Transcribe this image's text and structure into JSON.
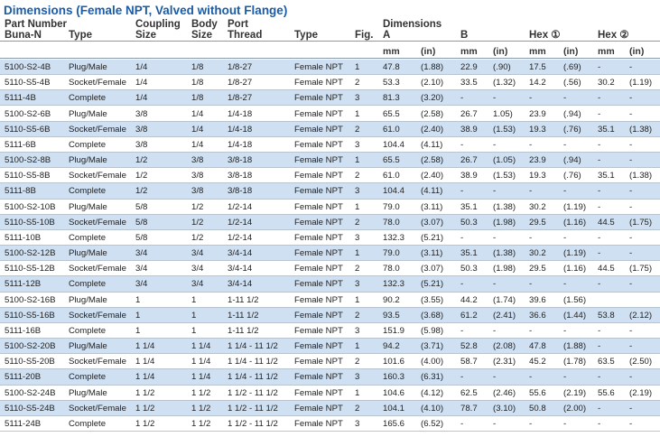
{
  "header": {
    "title": "Dimensions (Female NPT, Valved without Flange)"
  },
  "table": {
    "headers": [
      {
        "lines": [
          "Part Number",
          "Buna-N"
        ]
      },
      {
        "lines": [
          "Type"
        ]
      },
      {
        "lines": [
          "Coupling",
          "Size"
        ]
      },
      {
        "lines": [
          "Body",
          "Size"
        ]
      },
      {
        "lines": [
          "Port",
          "Thread"
        ]
      },
      {
        "lines": [
          "Type"
        ]
      },
      {
        "lines": [
          "Fig."
        ]
      },
      {
        "lines": [
          "Dimensions",
          "A"
        ]
      },
      {
        "lines": [
          "B"
        ]
      },
      {
        "lines": [
          "Hex ①"
        ]
      },
      {
        "lines": [
          "Hex ②"
        ]
      }
    ],
    "units": [
      "mm",
      "(in)",
      "mm",
      "(in)",
      "mm",
      "(in)",
      "mm",
      "(in)"
    ],
    "rows": [
      [
        "5100-S2-4B",
        "Plug/Male",
        "1/4",
        "1/8",
        "1/8-27",
        "Female NPT",
        "1",
        "47.8",
        "(1.88)",
        "22.9",
        "(.90)",
        "17.5",
        "(.69)",
        "-",
        "-"
      ],
      [
        "5110-S5-4B",
        "Socket/Female",
        "1/4",
        "1/8",
        "1/8-27",
        "Female NPT",
        "2",
        "53.3",
        "(2.10)",
        "33.5",
        "(1.32)",
        "14.2",
        "(.56)",
        "30.2",
        "(1.19)"
      ],
      [
        "5111-4B",
        "Complete",
        "1/4",
        "1/8",
        "1/8-27",
        "Female NPT",
        "3",
        "81.3",
        "(3.20)",
        "-",
        "-",
        "-",
        "-",
        "-",
        "-"
      ],
      [
        "5100-S2-6B",
        "Plug/Male",
        "3/8",
        "1/4",
        "1/4-18",
        "Female NPT",
        "1",
        "65.5",
        "(2.58)",
        "26.7",
        "1.05)",
        "23.9",
        "(.94)",
        "-",
        "-"
      ],
      [
        "5110-S5-6B",
        "Socket/Female",
        "3/8",
        "1/4",
        "1/4-18",
        "Female NPT",
        "2",
        "61.0",
        "(2.40)",
        "38.9",
        "(1.53)",
        "19.3",
        "(.76)",
        "35.1",
        "(1.38)"
      ],
      [
        "5111-6B",
        "Complete",
        "3/8",
        "1/4",
        "1/4-18",
        "Female NPT",
        "3",
        "104.4",
        "(4.11)",
        "-",
        "-",
        "-",
        "-",
        "-",
        "-"
      ],
      [
        "5100-S2-8B",
        "Plug/Male",
        "1/2",
        "3/8",
        "3/8-18",
        "Female NPT",
        "1",
        "65.5",
        "(2.58)",
        "26.7",
        "(1.05)",
        "23.9",
        "(.94)",
        "-",
        "-"
      ],
      [
        "5110-S5-8B",
        "Socket/Female",
        "1/2",
        "3/8",
        "3/8-18",
        "Female NPT",
        "2",
        "61.0",
        "(2.40)",
        "38.9",
        "(1.53)",
        "19.3",
        "(.76)",
        "35.1",
        "(1.38)"
      ],
      [
        "5111-8B",
        "Complete",
        "1/2",
        "3/8",
        "3/8-18",
        "Female NPT",
        "3",
        "104.4",
        "(4.11)",
        "-",
        "-",
        "-",
        "-",
        "-",
        "-"
      ],
      [
        "5100-S2-10B",
        "Plug/Male",
        "5/8",
        "1/2",
        "1/2-14",
        "Female NPT",
        "1",
        "79.0",
        "(3.11)",
        "35.1",
        "(1.38)",
        "30.2",
        "(1.19)",
        "-",
        "-"
      ],
      [
        "5110-S5-10B",
        "Socket/Female",
        "5/8",
        "1/2",
        "1/2-14",
        "Female NPT",
        "2",
        "78.0",
        "(3.07)",
        "50.3",
        "(1.98)",
        "29.5",
        "(1.16)",
        "44.5",
        "(1.75)"
      ],
      [
        "5111-10B",
        "Complete",
        "5/8",
        "1/2",
        "1/2-14",
        "Female NPT",
        "3",
        "132.3",
        "(5.21)",
        "-",
        "-",
        "-",
        "-",
        "-",
        "-"
      ],
      [
        "5100-S2-12B",
        "Plug/Male",
        "3/4",
        "3/4",
        "3/4-14",
        "Female NPT",
        "1",
        "79.0",
        "(3.11)",
        "35.1",
        "(1.38)",
        "30.2",
        "(1.19)",
        "-",
        "-"
      ],
      [
        "5110-S5-12B",
        "Socket/Female",
        "3/4",
        "3/4",
        "3/4-14",
        "Female NPT",
        "2",
        "78.0",
        "(3.07)",
        "50.3",
        "(1.98)",
        "29.5",
        "(1.16)",
        "44.5",
        "(1.75)"
      ],
      [
        "5111-12B",
        "Complete",
        "3/4",
        "3/4",
        "3/4-14",
        "Female NPT",
        "3",
        "132.3",
        "(5.21)",
        "-",
        "-",
        "-",
        "-",
        "-",
        "-"
      ],
      [
        "5100-S2-16B",
        "Plug/Male",
        "1",
        "1",
        "1-11 1/2",
        "Female NPT",
        "1",
        "90.2",
        "(3.55)",
        "44.2",
        "(1.74)",
        "39.6",
        "(1.56)",
        null,
        null
      ],
      [
        "5110-S5-16B",
        "Socket/Female",
        "1",
        "1",
        "1-11 1/2",
        "Female NPT",
        "2",
        "93.5",
        "(3.68)",
        "61.2",
        "(2.41)",
        "36.6",
        "(1.44)",
        "53.8",
        "(2.12)"
      ],
      [
        "5111-16B",
        "Complete",
        "1",
        "1",
        "1-11 1/2",
        "Female NPT",
        "3",
        "151.9",
        "(5.98)",
        "-",
        "-",
        "-",
        "-",
        "-",
        "-"
      ],
      [
        "5100-S2-20B",
        "Plug/Male",
        "1 1/4",
        "1 1/4",
        "1 1/4 - 11 1/2",
        "Female NPT",
        "1",
        "94.2",
        "(3.71)",
        "52.8",
        "(2.08)",
        "47.8",
        "(1.88)",
        "-",
        "-"
      ],
      [
        "5110-S5-20B",
        "Socket/Female",
        "1 1/4",
        "1 1/4",
        "1 1/4 - 11 1/2",
        "Female NPT",
        "2",
        "101.6",
        "(4.00)",
        "58.7",
        "(2.31)",
        "45.2",
        "(1.78)",
        "63.5",
        "(2.50)"
      ],
      [
        "5111-20B",
        "Complete",
        "1 1/4",
        "1 1/4",
        "1 1/4 - 11 1/2",
        "Female NPT",
        "3",
        "160.3",
        "(6.31)",
        "-",
        "-",
        "-",
        "-",
        "-",
        "-"
      ],
      [
        "5100-S2-24B",
        "Plug/Male",
        "1 1/2",
        "1 1/2",
        "1 1/2 - 11 1/2",
        "Female NPT",
        "1",
        "104.6",
        "(4.12)",
        "62.5",
        "(2.46)",
        "55.6",
        "(2.19)",
        "55.6",
        "(2.19)"
      ],
      [
        "5110-S5-24B",
        "Socket/Female",
        "1 1/2",
        "1 1/2",
        "1 1/2 - 11 1/2",
        "Female NPT",
        "2",
        "104.1",
        "(4.10)",
        "78.7",
        "(3.10)",
        "50.8",
        "(2.00)",
        "-",
        "-"
      ],
      [
        "5111-24B",
        "Complete",
        "1 1/2",
        "1 1/2",
        "1 1/2 - 11 1/2",
        "Female NPT",
        "3",
        "165.6",
        "(6.52)",
        "-",
        "-",
        "-",
        "-",
        "-",
        "-"
      ]
    ]
  }
}
